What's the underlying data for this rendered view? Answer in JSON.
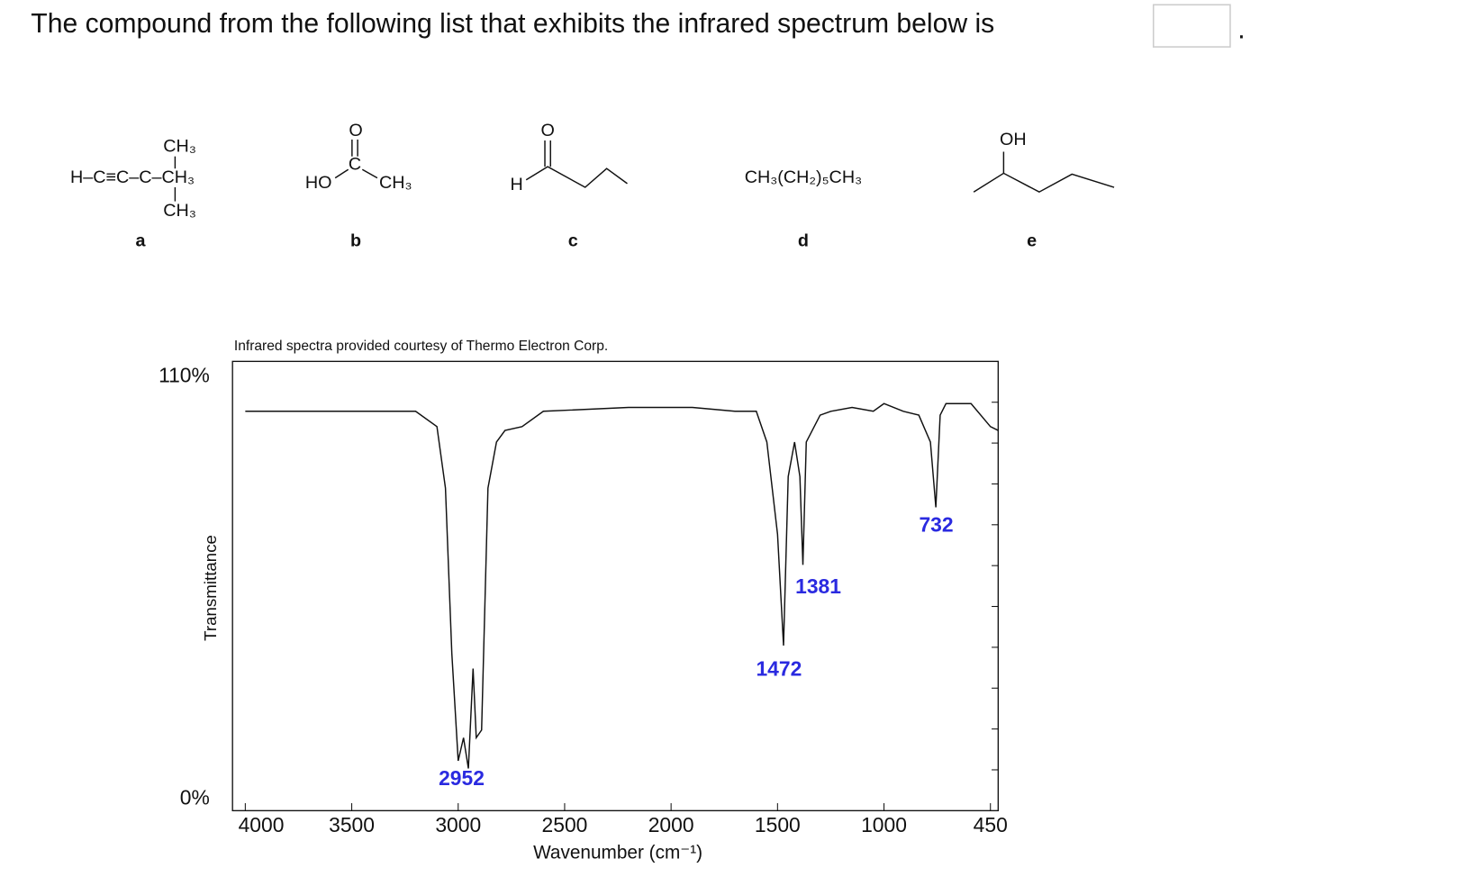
{
  "question": {
    "text": "The compound from the following list that exhibits the infrared spectrum below is",
    "end": "."
  },
  "compounds": [
    {
      "label": "a",
      "top": "CH₃",
      "main": "H–C≡C–C–CH₃",
      "bottom": "CH₃"
    },
    {
      "label": "b",
      "oxygen": "O",
      "carbon": "C",
      "left": "HO",
      "right": "CH₃"
    },
    {
      "label": "c",
      "oxygen": "O",
      "left": "H"
    },
    {
      "label": "d",
      "formula": "CH₃(CH₂)₅CH₃"
    },
    {
      "label": "e",
      "group": "OH"
    }
  ],
  "chart_data": {
    "type": "line",
    "title": "Infrared spectra provided courtesy of Thermo Electron Corp.",
    "xlabel": "Wavenumber (cm⁻¹)",
    "ylabel": "Transmittance",
    "color": "#111111",
    "x": [
      4000,
      3500,
      3200,
      3100,
      3060,
      3030,
      3000,
      2975,
      2952,
      2930,
      2915,
      2890,
      2860,
      2820,
      2780,
      2700,
      2600,
      2200,
      1900,
      1700,
      1600,
      1550,
      1500,
      1472,
      1450,
      1420,
      1395,
      1381,
      1365,
      1300,
      1250,
      1150,
      1050,
      1000,
      900,
      820,
      760,
      732,
      710,
      680,
      550,
      450,
      410
    ],
    "values": [
      101,
      101,
      101,
      97,
      81,
      38,
      10,
      16,
      8,
      34,
      16,
      18,
      81,
      93,
      96,
      97,
      101,
      102,
      102,
      101,
      101,
      93,
      69,
      40,
      84,
      93,
      84,
      61,
      93,
      100,
      101,
      102,
      101,
      103,
      101,
      100,
      93,
      76,
      100,
      103,
      103,
      97,
      96
    ],
    "xlim": [
      4060,
      410
    ],
    "xticks": [
      4000,
      3500,
      3000,
      2500,
      2000,
      1500,
      1000,
      450
    ],
    "ylim": [
      -3,
      114
    ],
    "yticks": [
      {
        "value": 0,
        "label": "0%"
      },
      {
        "value": 110,
        "label": "110%"
      }
    ],
    "annotations": [
      "2952",
      "1472",
      "1381",
      "732"
    ],
    "annotation_color": "#2a2ae0"
  }
}
